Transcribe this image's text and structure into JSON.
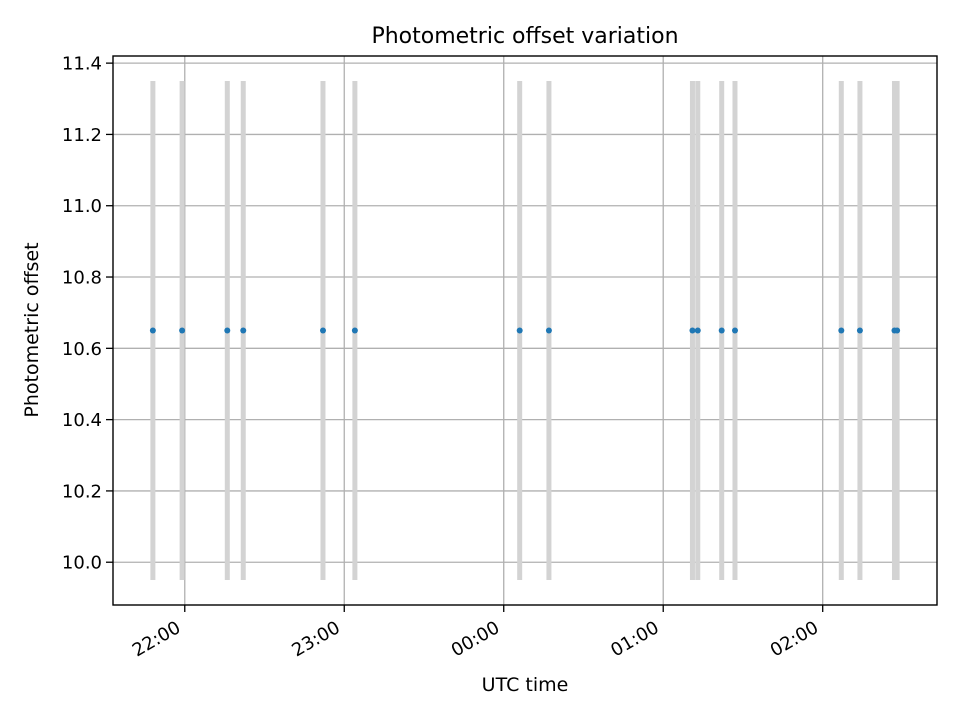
{
  "chart_data": {
    "type": "scatter",
    "title": "Photometric offset variation",
    "xlabel": "UTC time",
    "ylabel": "Photometric offset",
    "x_axis_type": "time",
    "xlim": [
      "21:33",
      "02:43"
    ],
    "ylim": [
      9.88,
      11.42
    ],
    "x_ticks": [
      "22:00",
      "23:00",
      "00:00",
      "01:00",
      "02:00"
    ],
    "y_ticks": [
      10.0,
      10.2,
      10.4,
      10.6,
      10.8,
      11.0,
      11.2,
      11.4
    ],
    "grid": true,
    "series": [
      {
        "x": [
          "21:48",
          "21:59",
          "22:16",
          "22:22",
          "22:52",
          "23:04",
          "00:06",
          "00:17",
          "01:11",
          "01:13",
          "01:22",
          "01:27",
          "02:07",
          "02:14",
          "02:27",
          "02:28"
        ],
        "y": [
          10.65,
          10.65,
          10.65,
          10.65,
          10.65,
          10.65,
          10.65,
          10.65,
          10.65,
          10.65,
          10.65,
          10.65,
          10.65,
          10.65,
          10.65,
          10.65
        ],
        "y_range": [
          [
            9.95,
            11.35
          ],
          [
            9.95,
            11.35
          ],
          [
            9.95,
            11.35
          ],
          [
            9.95,
            11.35
          ],
          [
            9.95,
            11.35
          ],
          [
            9.95,
            11.35
          ],
          [
            9.95,
            11.35
          ],
          [
            9.95,
            11.35
          ],
          [
            9.95,
            11.35
          ],
          [
            9.95,
            11.35
          ],
          [
            9.95,
            11.35
          ],
          [
            9.95,
            11.35
          ],
          [
            9.95,
            11.35
          ],
          [
            9.95,
            11.35
          ],
          [
            9.95,
            11.35
          ],
          [
            9.95,
            11.35
          ]
        ]
      }
    ],
    "colors": {
      "points": "#1f77b4",
      "error_bars": "#d3d3d3",
      "grid": "#b0b0b0",
      "axes": "#000000"
    }
  }
}
